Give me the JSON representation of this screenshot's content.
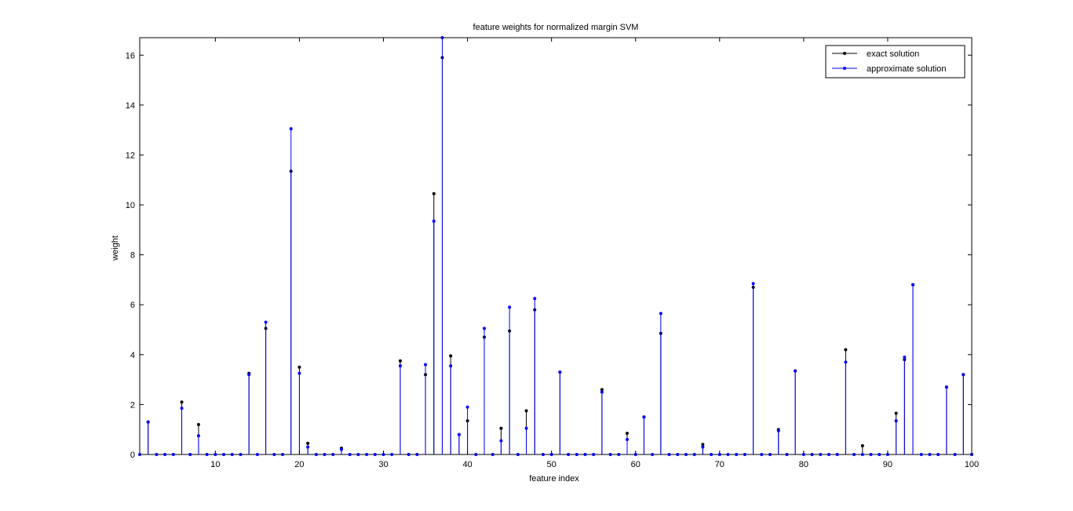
{
  "chart_data": {
    "type": "stem",
    "title": "feature weights for normalized margin SVM",
    "xlabel": "feature index",
    "ylabel": "weight",
    "xlim": [
      1,
      100
    ],
    "ylim": [
      0,
      16.7
    ],
    "xticks": [
      10,
      20,
      30,
      40,
      50,
      60,
      70,
      80,
      90,
      100
    ],
    "yticks": [
      0,
      2,
      4,
      6,
      8,
      10,
      12,
      14,
      16
    ],
    "grid": false,
    "legend_position": "top-right",
    "series": [
      {
        "name": "exact solution",
        "color": "#000000",
        "points": [
          [
            2,
            1.3
          ],
          [
            6,
            2.1
          ],
          [
            8,
            1.2
          ],
          [
            14,
            3.25
          ],
          [
            16,
            5.05
          ],
          [
            19,
            11.35
          ],
          [
            20,
            3.5
          ],
          [
            21,
            0.45
          ],
          [
            25,
            0.25
          ],
          [
            32,
            3.75
          ],
          [
            35,
            3.2
          ],
          [
            36,
            10.45
          ],
          [
            37,
            15.9
          ],
          [
            38,
            3.95
          ],
          [
            39,
            0.8
          ],
          [
            40,
            1.35
          ],
          [
            42,
            4.7
          ],
          [
            44,
            1.05
          ],
          [
            45,
            4.95
          ],
          [
            47,
            1.75
          ],
          [
            48,
            5.8
          ],
          [
            51,
            3.3
          ],
          [
            56,
            2.6
          ],
          [
            59,
            0.85
          ],
          [
            61,
            1.5
          ],
          [
            63,
            4.85
          ],
          [
            68,
            0.4
          ],
          [
            74,
            6.7
          ],
          [
            77,
            1.0
          ],
          [
            79,
            3.35
          ],
          [
            85,
            4.2
          ],
          [
            87,
            0.35
          ],
          [
            91,
            1.65
          ],
          [
            92,
            3.8
          ],
          [
            93,
            6.8
          ],
          [
            97,
            2.7
          ],
          [
            99,
            3.2
          ]
        ]
      },
      {
        "name": "approximate solution",
        "color": "#0000ff",
        "points": [
          [
            2,
            1.3
          ],
          [
            6,
            1.85
          ],
          [
            8,
            0.75
          ],
          [
            14,
            3.2
          ],
          [
            16,
            5.3
          ],
          [
            19,
            13.05
          ],
          [
            20,
            3.25
          ],
          [
            21,
            0.3
          ],
          [
            25,
            0.2
          ],
          [
            32,
            3.55
          ],
          [
            35,
            3.6
          ],
          [
            36,
            9.35
          ],
          [
            37,
            16.7
          ],
          [
            38,
            3.55
          ],
          [
            39,
            0.8
          ],
          [
            40,
            1.9
          ],
          [
            42,
            5.05
          ],
          [
            44,
            0.55
          ],
          [
            45,
            5.9
          ],
          [
            47,
            1.05
          ],
          [
            48,
            6.25
          ],
          [
            51,
            3.3
          ],
          [
            56,
            2.5
          ],
          [
            59,
            0.6
          ],
          [
            61,
            1.5
          ],
          [
            63,
            5.65
          ],
          [
            68,
            0.3
          ],
          [
            74,
            6.85
          ],
          [
            77,
            0.95
          ],
          [
            79,
            3.35
          ],
          [
            85,
            3.7
          ],
          [
            87,
            0.0
          ],
          [
            91,
            1.35
          ],
          [
            92,
            3.9
          ],
          [
            93,
            6.8
          ],
          [
            97,
            2.7
          ],
          [
            99,
            3.2
          ]
        ]
      }
    ]
  }
}
